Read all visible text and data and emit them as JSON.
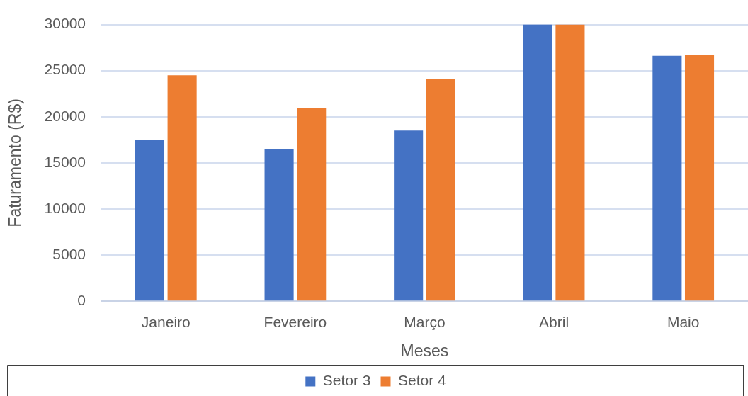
{
  "chart_data": {
    "type": "bar",
    "xlabel": "Meses",
    "ylabel": "Faturamento (R$)",
    "categories": [
      "Janeiro",
      "Fevereiro",
      "Março",
      "Abril",
      "Maio"
    ],
    "series": [
      {
        "name": "Setor 3",
        "color": "#4472c4",
        "values": [
          17500,
          16500,
          18500,
          30000,
          26600
        ]
      },
      {
        "name": "Setor 4",
        "color": "#ed7d31",
        "values": [
          24500,
          20900,
          24100,
          30000,
          26700
        ]
      }
    ],
    "ylim": [
      0,
      30000
    ],
    "yticks": [
      0,
      5000,
      10000,
      15000,
      20000,
      25000,
      30000
    ],
    "grid": "y",
    "legend": "bottom"
  }
}
